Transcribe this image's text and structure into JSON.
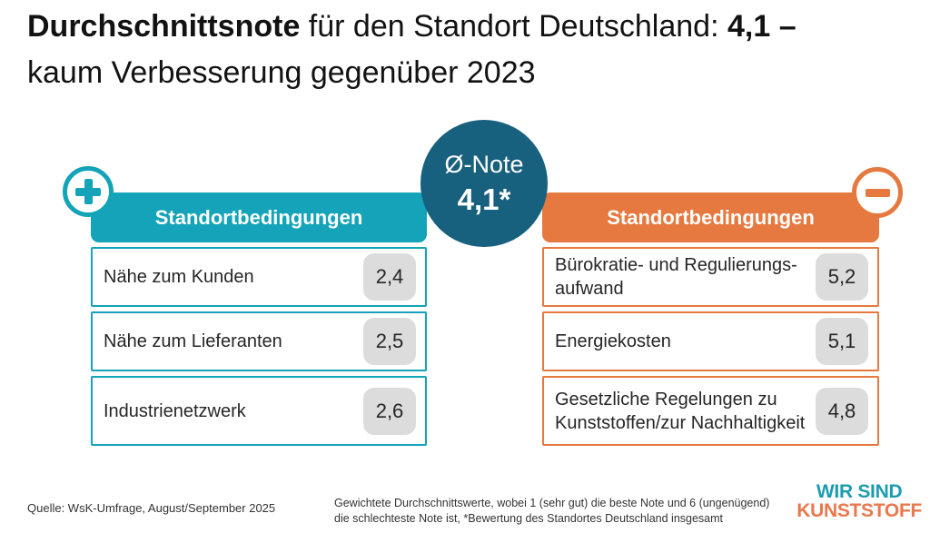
{
  "title": {
    "seg1_bold": "Durchschnittsnote",
    "seg2": " für den Standort Deutschland: ",
    "seg3_bold": "4,1 –",
    "line2": "kaum Verbesserung gegenüber 2023"
  },
  "center_badge": {
    "label": "Ø-Note",
    "value": "4,1*"
  },
  "left_panel": {
    "sign": "plus",
    "header": "Standortbedingungen",
    "rows": [
      {
        "label": "Nähe zum Kunden",
        "value": "2,4"
      },
      {
        "label": "Nähe zum Lieferanten",
        "value": "2,5"
      },
      {
        "label": "Industrienetzwerk",
        "value": "2,6"
      }
    ]
  },
  "right_panel": {
    "sign": "minus",
    "header": "Standortbedingungen",
    "rows": [
      {
        "label": "Bürokratie- und Regulierungs-\naufwand",
        "value": "5,2"
      },
      {
        "label": "Energiekosten",
        "value": "5,1"
      },
      {
        "label": "Gesetzliche Regelungen zu\nKunststoffen/zur Nachhaltigkeit",
        "value": "4,8"
      }
    ]
  },
  "footer": {
    "source": "Quelle: WsK-Umfrage, August/September 2025",
    "method_note": "Gewichtete Durchschnittswerte, wobei 1 (sehr gut) die beste Note und 6 (ungenügend)\ndie schlechteste Note ist, *Bewertung des Standortes Deutschland insgesamt",
    "logo_line1": "WIR SIND",
    "logo_line2": "KUNSTSTOFF"
  },
  "colors": {
    "teal": "#14a3b8",
    "dark_teal_circle": "#17607e",
    "orange": "#e5793f",
    "chip_gray": "#dcdcdc",
    "logo_teal": "#1d9cb0",
    "logo_orange": "#e8784e"
  },
  "chart_data": {
    "type": "table",
    "title": "Durchschnittsnote für den Standort Deutschland: 4,1 – kaum Verbesserung gegenüber 2023",
    "average_note": 4.1,
    "average_note_footnote": "Bewertung des Standortes Deutschland insgesamt",
    "scale": {
      "best": 1,
      "best_label": "sehr gut",
      "worst": 6,
      "worst_label": "ungenügend"
    },
    "series": [
      {
        "name": "Standortbedingungen (positiv)",
        "categories": [
          "Nähe zum Kunden",
          "Nähe zum Lieferanten",
          "Industrienetzwerk"
        ],
        "values": [
          2.4,
          2.5,
          2.6
        ]
      },
      {
        "name": "Standortbedingungen (negativ)",
        "categories": [
          "Bürokratie- und Regulierungsaufwand",
          "Energiekosten",
          "Gesetzliche Regelungen zu Kunststoffen/zur Nachhaltigkeit"
        ],
        "values": [
          5.2,
          5.1,
          4.8
        ]
      }
    ]
  }
}
